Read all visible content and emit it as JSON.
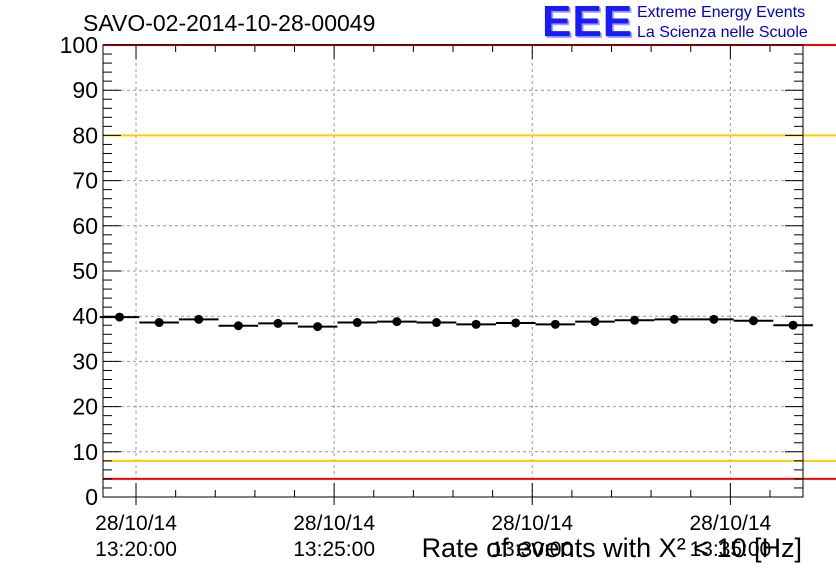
{
  "title": "SAVO-02-2014-10-28-00049",
  "logo": {
    "mark": "EEE",
    "line1": "Extreme Energy Events",
    "line2": "La Scienza nelle Scuole"
  },
  "colors": {
    "red_line": "#ff0000",
    "yellow_line": "#ffcc00",
    "logo_blue": "#1a1aff",
    "points": "#000000",
    "grid": "#999999"
  },
  "chart_data": {
    "type": "scatter",
    "title": "SAVO-02-2014-10-28-00049",
    "xlabel": "Rate of events with X² < 10 [Hz]",
    "ylabel": "",
    "xlim": [
      "13:19:10",
      "13:36:50"
    ],
    "ylim": [
      0,
      100
    ],
    "grid": true,
    "y_ticks": [
      0,
      10,
      20,
      30,
      40,
      50,
      60,
      70,
      80,
      90,
      100
    ],
    "x_ticks": [
      {
        "date": "28/10/14",
        "time": "13:20:00"
      },
      {
        "date": "28/10/14",
        "time": "13:25:00"
      },
      {
        "date": "28/10/14",
        "time": "13:30:00"
      },
      {
        "date": "28/10/14",
        "time": "13:35:00"
      }
    ],
    "reference_lines": [
      {
        "y": 100,
        "color": "#ff0000"
      },
      {
        "y": 80,
        "color": "#ffcc00"
      },
      {
        "y": 8,
        "color": "#ffcc00"
      },
      {
        "y": 4,
        "color": "#ff0000"
      }
    ],
    "bin_width_seconds": 60,
    "series": [
      {
        "x": [
          "13:19:35",
          "13:20:35",
          "13:21:35",
          "13:22:35",
          "13:23:35",
          "13:24:35",
          "13:25:35",
          "13:26:35",
          "13:27:35",
          "13:28:35",
          "13:29:35",
          "13:30:35",
          "13:31:35",
          "13:32:35",
          "13:33:35",
          "13:34:35",
          "13:35:35",
          "13:36:35"
        ],
        "y": [
          39.8,
          38.6,
          39.3,
          37.9,
          38.4,
          37.7,
          38.6,
          38.8,
          38.6,
          38.2,
          38.5,
          38.2,
          38.8,
          39.1,
          39.3,
          39.3,
          39.0,
          38.0
        ]
      }
    ]
  }
}
